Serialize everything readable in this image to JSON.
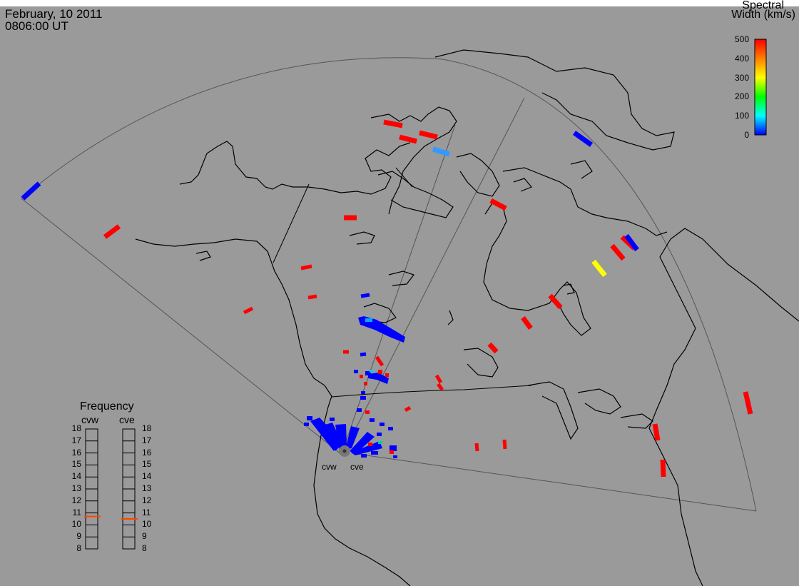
{
  "header": {
    "date": "February, 10 2011",
    "time": "0806:00 UT"
  },
  "colorbar": {
    "title_line1": "Spectral",
    "title_line2": "Width (km/s)",
    "ticks": [
      "500",
      "400",
      "300",
      "200",
      "100",
      "0"
    ],
    "colors": [
      "#ff0000",
      "#ff7f00",
      "#ffff00",
      "#00ff00",
      "#00ffff",
      "#0000ff"
    ]
  },
  "stations": {
    "west": "cvw",
    "east": "cve"
  },
  "frequency": {
    "title": "Frequency",
    "col_west": "cvw",
    "col_east": "cve",
    "levels": [
      "18",
      "17",
      "16",
      "15",
      "14",
      "13",
      "12",
      "11",
      "10",
      "9",
      "8"
    ],
    "cvw_value": 10.7,
    "cve_value": 10.5,
    "marker_color": "#ff4400"
  }
}
